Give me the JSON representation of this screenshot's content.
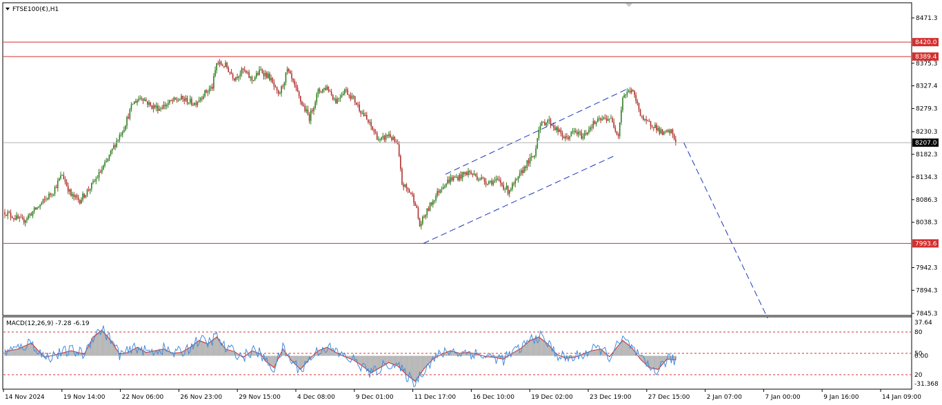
{
  "chart_data": [
    {
      "type": "candlestick",
      "title": "FTSE100(€),H1",
      "ylim": [
        7830,
        8480
      ],
      "y_ticks": [
        "8471.3",
        "8375.3",
        "8327.4",
        "8279.3",
        "8230.3",
        "8182.3",
        "8134.3",
        "8086.3",
        "8038.3",
        "7942.3",
        "7894.3",
        "7845.3"
      ],
      "x_ticks": [
        "14 Nov 2024",
        "19 Nov 14:00",
        "22 Nov 06:00",
        "26 Nov 23:00",
        "29 Nov 15:00",
        "4 Dec 08:00",
        "9 Dec 01:00",
        "11 Dec 17:00",
        "16 Dec 10:00",
        "19 Dec 02:00",
        "23 Dec 19:00",
        "27 Dec 15:00",
        "2 Jan 07:00",
        "7 Jan 00:00",
        "9 Jan 16:00",
        "14 Jan 09:00"
      ],
      "price_path": [
        [
          0,
          8060
        ],
        [
          4,
          8040
        ],
        [
          8,
          8075
        ],
        [
          11,
          8105
        ],
        [
          13,
          8140
        ],
        [
          15,
          8095
        ],
        [
          17,
          8085
        ],
        [
          20,
          8120
        ],
        [
          23,
          8165
        ],
        [
          25,
          8205
        ],
        [
          27,
          8240
        ],
        [
          29,
          8290
        ],
        [
          31,
          8305
        ],
        [
          33,
          8285
        ],
        [
          35,
          8280
        ],
        [
          38,
          8295
        ],
        [
          40,
          8300
        ],
        [
          43,
          8290
        ],
        [
          45,
          8310
        ],
        [
          47,
          8325
        ],
        [
          48,
          8375
        ],
        [
          50,
          8370
        ],
        [
          52,
          8345
        ],
        [
          54,
          8360
        ],
        [
          56,
          8340
        ],
        [
          58,
          8360
        ],
        [
          60,
          8345
        ],
        [
          62,
          8305
        ],
        [
          63,
          8330
        ],
        [
          64,
          8360
        ],
        [
          65,
          8340
        ],
        [
          67,
          8295
        ],
        [
          69,
          8260
        ],
        [
          71,
          8315
        ],
        [
          73,
          8325
        ],
        [
          75,
          8295
        ],
        [
          77,
          8320
        ],
        [
          79,
          8300
        ],
        [
          81,
          8270
        ],
        [
          83,
          8240
        ],
        [
          85,
          8210
        ],
        [
          87,
          8225
        ],
        [
          89,
          8200
        ],
        [
          90,
          8120
        ],
        [
          92,
          8100
        ],
        [
          93,
          8080
        ],
        [
          94,
          8030
        ],
        [
          95,
          8050
        ],
        [
          97,
          8085
        ],
        [
          99,
          8115
        ],
        [
          101,
          8130
        ],
        [
          103,
          8135
        ],
        [
          105,
          8145
        ],
        [
          107,
          8135
        ],
        [
          109,
          8125
        ],
        [
          112,
          8125
        ],
        [
          114,
          8105
        ],
        [
          116,
          8125
        ],
        [
          118,
          8160
        ],
        [
          120,
          8180
        ],
        [
          121,
          8240
        ],
        [
          123,
          8255
        ],
        [
          125,
          8235
        ],
        [
          127,
          8215
        ],
        [
          129,
          8230
        ],
        [
          131,
          8220
        ],
        [
          133,
          8245
        ],
        [
          135,
          8255
        ],
        [
          137,
          8260
        ],
        [
          139,
          8225
        ],
        [
          140,
          8305
        ],
        [
          142,
          8320
        ],
        [
          144,
          8270
        ],
        [
          145,
          8250
        ],
        [
          147,
          8245
        ],
        [
          149,
          8225
        ],
        [
          151,
          8230
        ],
        [
          152,
          8210
        ]
      ],
      "resistance_levels": [
        {
          "label": "8420.0",
          "value": 8420.0
        },
        {
          "label": "8389.4",
          "value": 8389.4
        }
      ],
      "support_level": {
        "label": "7993.6",
        "value": 7993.6
      },
      "current_price": {
        "label": "8207.0",
        "value": 8207.0
      },
      "channel_upper": [
        [
          100,
          8140
        ],
        [
          141,
          8320
        ]
      ],
      "channel_lower": [
        [
          95,
          7993.6
        ],
        [
          138,
          8178
        ]
      ],
      "projection": [
        [
          154,
          8207
        ],
        [
          173,
          7835
        ]
      ],
      "colors": {
        "up": "#2e7d1e",
        "down": "#b0302a",
        "level": "#d32f2f",
        "channel": "#1a35b8",
        "current": "#000000"
      }
    },
    {
      "type": "macd",
      "title": "MACD(12,26,9) -7.28 -6.19",
      "ylim": [
        -31.368,
        37.64
      ],
      "y_ticks": [
        "37.64",
        "0.00",
        "-31.368"
      ],
      "ref_levels": [
        80,
        50,
        20
      ],
      "hist_path": [
        [
          0,
          5
        ],
        [
          3,
          8
        ],
        [
          6,
          15
        ],
        [
          9,
          -2
        ],
        [
          12,
          2
        ],
        [
          15,
          6
        ],
        [
          18,
          2
        ],
        [
          20,
          22
        ],
        [
          22,
          30
        ],
        [
          24,
          18
        ],
        [
          26,
          2
        ],
        [
          28,
          4
        ],
        [
          30,
          10
        ],
        [
          32,
          4
        ],
        [
          34,
          6
        ],
        [
          36,
          8
        ],
        [
          38,
          3
        ],
        [
          40,
          4
        ],
        [
          42,
          10
        ],
        [
          44,
          18
        ],
        [
          46,
          14
        ],
        [
          48,
          22
        ],
        [
          50,
          8
        ],
        [
          52,
          5
        ],
        [
          54,
          -2
        ],
        [
          56,
          6
        ],
        [
          58,
          2
        ],
        [
          59,
          -6
        ],
        [
          61,
          -14
        ],
        [
          63,
          8
        ],
        [
          65,
          -6
        ],
        [
          67,
          -16
        ],
        [
          69,
          -4
        ],
        [
          71,
          6
        ],
        [
          73,
          10
        ],
        [
          75,
          4
        ],
        [
          77,
          -1
        ],
        [
          79,
          -5
        ],
        [
          81,
          -12
        ],
        [
          83,
          -20
        ],
        [
          85,
          -14
        ],
        [
          87,
          -8
        ],
        [
          89,
          -12
        ],
        [
          91,
          -22
        ],
        [
          93,
          -30
        ],
        [
          95,
          -15
        ],
        [
          97,
          -4
        ],
        [
          99,
          2
        ],
        [
          101,
          6
        ],
        [
          103,
          3
        ],
        [
          105,
          4
        ],
        [
          107,
          2
        ],
        [
          109,
          -1
        ],
        [
          111,
          -2
        ],
        [
          113,
          -4
        ],
        [
          115,
          3
        ],
        [
          117,
          9
        ],
        [
          119,
          18
        ],
        [
          121,
          22
        ],
        [
          123,
          14
        ],
        [
          125,
          2
        ],
        [
          127,
          -3
        ],
        [
          129,
          -2
        ],
        [
          131,
          2
        ],
        [
          133,
          6
        ],
        [
          135,
          8
        ],
        [
          137,
          -1
        ],
        [
          139,
          12
        ],
        [
          140,
          18
        ],
        [
          142,
          10
        ],
        [
          144,
          -4
        ],
        [
          146,
          -14
        ],
        [
          148,
          -16
        ],
        [
          150,
          -4
        ],
        [
          152,
          -5
        ]
      ],
      "colors": {
        "histogram": "#b8b8b8",
        "macd": "#3d8ce0",
        "signal": "#d32f2f",
        "levels": "#d32f2f"
      }
    }
  ]
}
